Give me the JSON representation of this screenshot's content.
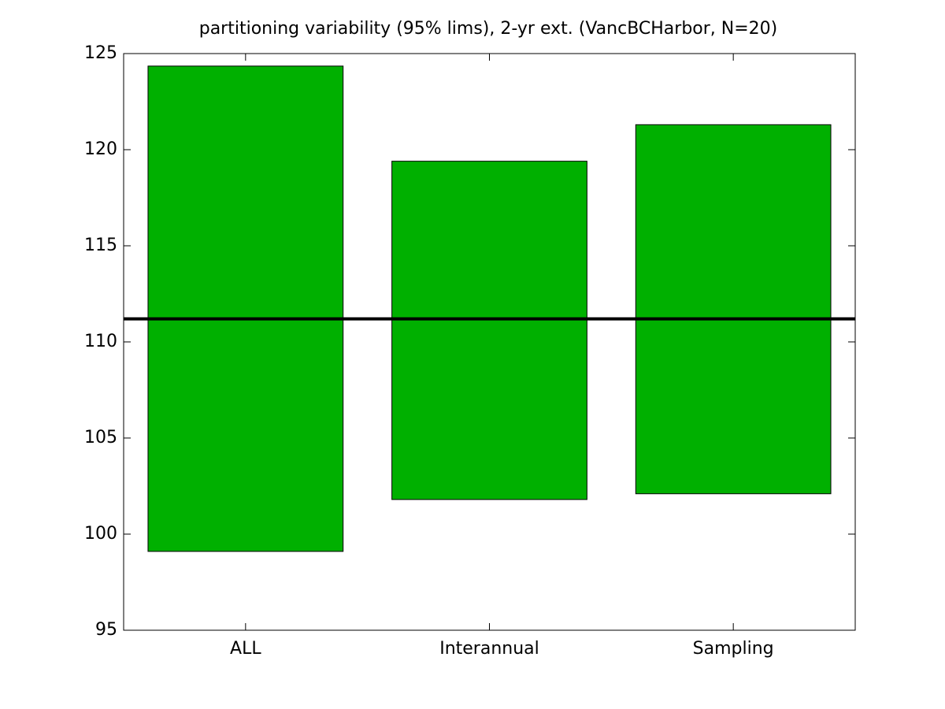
{
  "chart_data": {
    "type": "floating_bar",
    "title": "partitioning variability (95% lims), 2-yr ext. (VancBCHarbor, N=20)",
    "categories": [
      "ALL",
      "Interannual",
      "Sampling"
    ],
    "low": [
      99.1,
      101.8,
      102.1
    ],
    "high": [
      124.35,
      119.4,
      121.3
    ],
    "color": "#00b000",
    "reference_line": 111.2,
    "ylim": [
      95,
      125
    ],
    "yticks": [
      95,
      100,
      105,
      110,
      115,
      120,
      125
    ],
    "grid": false
  }
}
